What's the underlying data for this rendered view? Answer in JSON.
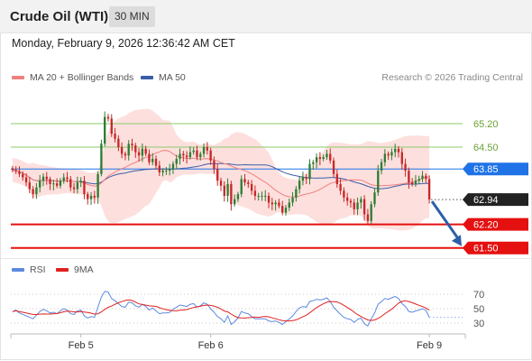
{
  "header": {
    "title": "Crude Oil (WTI)",
    "timeframe": "30 MIN"
  },
  "datetime": "Monday, February 9, 2026 12:36:42 AM CET",
  "legend": {
    "ma20": "MA 20 + Bollinger Bands",
    "ma50": "MA 50"
  },
  "copyright": "Research © 2026 Trading Central",
  "rsi_legend": {
    "rsi": "RSI",
    "ma": "9MA"
  },
  "colors": {
    "ma20": "#f08080",
    "ma50": "#3b5ea8",
    "band": "#fde0de",
    "up": "#2e7d32",
    "down": "#c62828",
    "resistance": "#8dc86a",
    "support": "#e51010",
    "pivot": "#1f73e6",
    "arrow": "#2c5fa8",
    "rsi": "#5b8ae0",
    "rsi_ma": "#e02020"
  },
  "chart_data": [
    {
      "type": "candlestick",
      "ylim": [
        61.25,
        66.3
      ],
      "x_ticks": [
        "Feb 5",
        "Feb 6",
        "Feb 9"
      ],
      "levels": [
        {
          "value": 65.2,
          "label": "65.20",
          "kind": "resistance"
        },
        {
          "value": 64.5,
          "label": "64.50",
          "kind": "resistance"
        },
        {
          "value": 63.85,
          "label": "63.85",
          "kind": "pivot"
        },
        {
          "value": 62.94,
          "label": "62.94",
          "kind": "last"
        },
        {
          "value": 62.2,
          "label": "62.20",
          "kind": "support"
        },
        {
          "value": 61.5,
          "label": "61.50",
          "kind": "support"
        }
      ],
      "last_price": 62.94,
      "close": [
        63.82,
        63.78,
        63.7,
        63.6,
        63.45,
        63.25,
        63.1,
        63.3,
        63.5,
        63.62,
        63.55,
        63.4,
        63.42,
        63.35,
        63.5,
        63.6,
        63.55,
        63.3,
        63.25,
        63.45,
        63.5,
        63.1,
        62.95,
        63.05,
        63.0,
        63.7,
        64.6,
        65.4,
        65.35,
        64.9,
        64.75,
        64.5,
        64.3,
        64.25,
        64.6,
        64.55,
        64.35,
        64.25,
        64.45,
        64.3,
        64.05,
        64.15,
        63.95,
        63.75,
        63.8,
        63.8,
        63.85,
        64.0,
        64.15,
        64.3,
        64.25,
        64.2,
        64.35,
        64.4,
        64.2,
        64.3,
        64.5,
        64.4,
        64.1,
        63.85,
        63.5,
        63.35,
        63.05,
        63.4,
        62.8,
        62.95,
        63.1,
        63.55,
        63.45,
        63.4,
        63.2,
        63.05,
        63.05,
        63.05,
        63.05,
        62.85,
        62.8,
        62.85,
        62.75,
        62.55,
        62.7,
        62.85,
        63.0,
        63.25,
        63.5,
        63.6,
        63.55,
        64.0,
        64.05,
        64.2,
        64.15,
        64.2,
        64.3,
        64.1,
        63.7,
        63.4,
        63.2,
        63.0,
        62.9,
        62.85,
        62.65,
        62.85,
        62.95,
        62.5,
        62.3,
        62.8,
        63.15,
        63.8,
        64.05,
        64.3,
        64.25,
        64.35,
        64.45,
        64.35,
        64.0,
        63.8,
        63.45,
        63.4,
        63.5,
        63.55,
        63.65,
        63.55,
        62.94
      ],
      "series": [
        {
          "name": "MA 20 + Bollinger Bands"
        },
        {
          "name": "MA 50"
        }
      ]
    },
    {
      "type": "line",
      "y_ticks": [
        70,
        50,
        30
      ],
      "ylim": [
        20,
        85
      ],
      "rsi": [
        46,
        48,
        44,
        42,
        40,
        38,
        36,
        41,
        46,
        49,
        47,
        44,
        45,
        43,
        47,
        50,
        48,
        43,
        42,
        47,
        48,
        40,
        37,
        39,
        38,
        52,
        66,
        74,
        73,
        64,
        61,
        57,
        53,
        52,
        59,
        58,
        54,
        52,
        56,
        53,
        48,
        51,
        47,
        43,
        44,
        44,
        45,
        49,
        52,
        55,
        54,
        53,
        56,
        57,
        52,
        54,
        58,
        56,
        50,
        45,
        39,
        36,
        31,
        40,
        28,
        32,
        37,
        46,
        44,
        43,
        39,
        36,
        36,
        36,
        36,
        33,
        32,
        33,
        31,
        28,
        32,
        36,
        40,
        46,
        51,
        53,
        52,
        60,
        61,
        63,
        62,
        63,
        65,
        60,
        52,
        47,
        42,
        38,
        36,
        35,
        31,
        35,
        37,
        29,
        26,
        36,
        44,
        56,
        60,
        64,
        63,
        65,
        67,
        64,
        57,
        53,
        46,
        45,
        47,
        48,
        50,
        48,
        38
      ]
    }
  ]
}
